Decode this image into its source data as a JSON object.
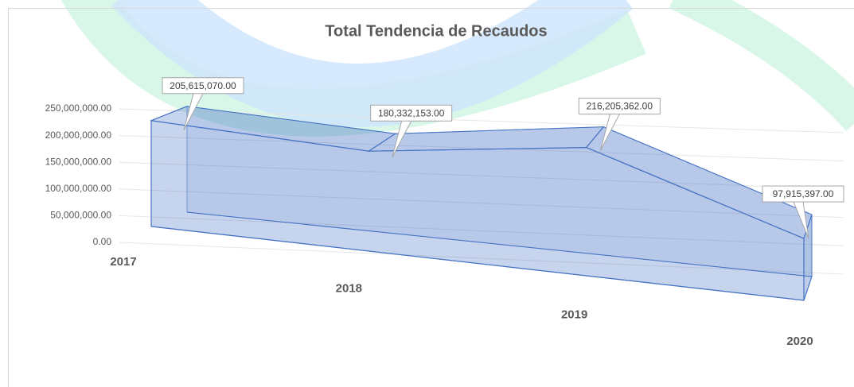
{
  "chart_data": {
    "type": "area",
    "title": "Total Tendencia de Recaudos",
    "categories": [
      "2017",
      "2018",
      "2019",
      "2020"
    ],
    "values": [
      205615070,
      180332153,
      216205362,
      97915397
    ],
    "value_labels": [
      "205,615,070.00",
      "180,332,153.00",
      "216,205,362.00",
      "97,915,397.00"
    ],
    "color": "#4472c4",
    "ylim": [
      0,
      250000000
    ],
    "yticks": [
      {
        "value": 0,
        "label": "0.00"
      },
      {
        "value": 50000000,
        "label": "50,000,000.00"
      },
      {
        "value": 100000000,
        "label": "100,000,000.00"
      },
      {
        "value": 150000000,
        "label": "150,000,000.00"
      },
      {
        "value": 200000000,
        "label": "200,000,000.00"
      },
      {
        "value": 250000000,
        "label": "250,000,000.00"
      }
    ],
    "grid": true
  }
}
